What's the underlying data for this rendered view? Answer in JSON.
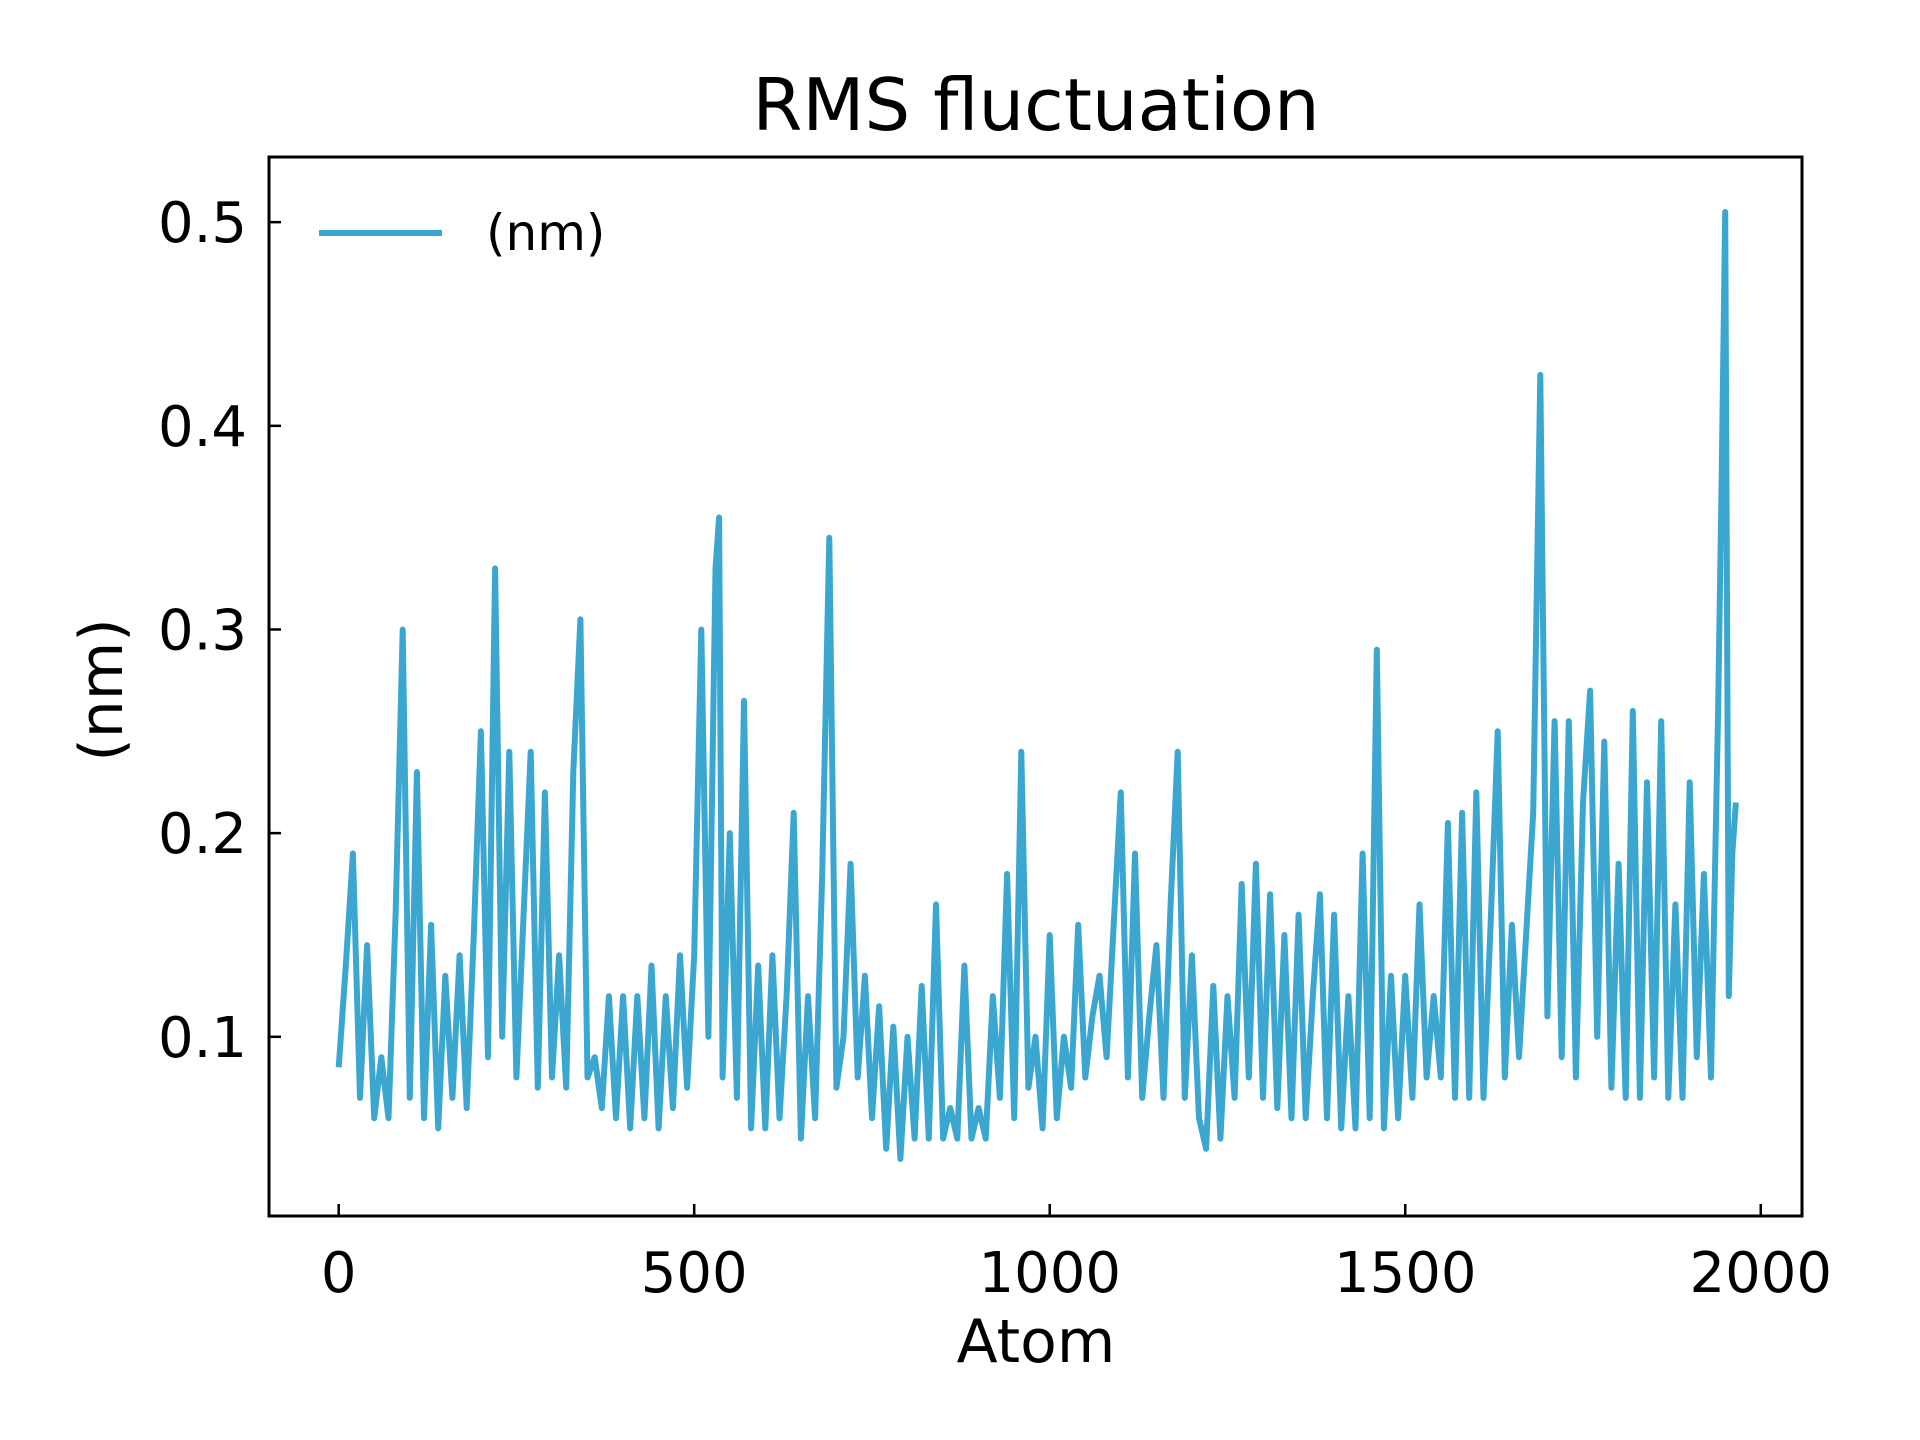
{
  "chart_data": {
    "type": "line",
    "title": "RMS fluctuation",
    "xlabel": "Atom",
    "ylabel": "(nm)",
    "xlim": [
      -98,
      2058
    ],
    "ylim": [
      0.012,
      0.532
    ],
    "xticks": [
      0,
      500,
      1000,
      1500,
      2000
    ],
    "xtick_labels": [
      "0",
      "500",
      "1000",
      "1500",
      "2000"
    ],
    "yticks": [
      0.1,
      0.2,
      0.3,
      0.4,
      0.5
    ],
    "ytick_labels": [
      "0.1",
      "0.2",
      "0.3",
      "0.4",
      "0.5"
    ],
    "grid": false,
    "legend": {
      "placement": "top-left",
      "entries": [
        "(nm)"
      ]
    },
    "series": [
      {
        "name": "(nm)",
        "color": "#3ba7d1",
        "x": [
          0,
          10,
          20,
          30,
          40,
          50,
          60,
          70,
          80,
          90,
          100,
          110,
          120,
          130,
          140,
          150,
          160,
          170,
          180,
          190,
          200,
          210,
          220,
          230,
          240,
          250,
          260,
          270,
          280,
          290,
          300,
          310,
          320,
          330,
          340,
          350,
          360,
          370,
          380,
          390,
          400,
          410,
          420,
          430,
          440,
          450,
          460,
          470,
          480,
          490,
          500,
          510,
          520,
          530,
          535,
          540,
          550,
          560,
          570,
          580,
          590,
          600,
          610,
          620,
          630,
          640,
          650,
          660,
          670,
          680,
          690,
          700,
          710,
          720,
          730,
          740,
          750,
          760,
          770,
          780,
          790,
          800,
          810,
          820,
          830,
          840,
          850,
          860,
          870,
          880,
          890,
          900,
          910,
          920,
          930,
          940,
          950,
          960,
          970,
          980,
          990,
          1000,
          1010,
          1020,
          1030,
          1040,
          1050,
          1060,
          1070,
          1080,
          1090,
          1100,
          1110,
          1120,
          1130,
          1140,
          1150,
          1160,
          1170,
          1180,
          1190,
          1200,
          1210,
          1220,
          1230,
          1240,
          1250,
          1260,
          1270,
          1280,
          1290,
          1300,
          1310,
          1320,
          1330,
          1340,
          1350,
          1360,
          1370,
          1380,
          1390,
          1400,
          1410,
          1420,
          1430,
          1440,
          1450,
          1460,
          1470,
          1480,
          1490,
          1500,
          1510,
          1520,
          1530,
          1540,
          1550,
          1560,
          1570,
          1580,
          1590,
          1600,
          1610,
          1620,
          1630,
          1640,
          1650,
          1660,
          1670,
          1680,
          1690,
          1700,
          1710,
          1720,
          1730,
          1740,
          1750,
          1760,
          1770,
          1780,
          1790,
          1800,
          1810,
          1820,
          1830,
          1840,
          1850,
          1860,
          1870,
          1880,
          1890,
          1900,
          1910,
          1920,
          1930,
          1940,
          1945,
          1950,
          1955,
          1960,
          1965
        ],
        "y": [
          0.085,
          0.135,
          0.19,
          0.07,
          0.145,
          0.06,
          0.09,
          0.06,
          0.16,
          0.3,
          0.07,
          0.23,
          0.06,
          0.155,
          0.055,
          0.13,
          0.07,
          0.14,
          0.065,
          0.15,
          0.25,
          0.09,
          0.33,
          0.1,
          0.24,
          0.08,
          0.16,
          0.24,
          0.075,
          0.22,
          0.08,
          0.14,
          0.075,
          0.23,
          0.305,
          0.08,
          0.09,
          0.065,
          0.12,
          0.06,
          0.12,
          0.055,
          0.12,
          0.06,
          0.135,
          0.055,
          0.12,
          0.065,
          0.14,
          0.075,
          0.14,
          0.3,
          0.1,
          0.33,
          0.355,
          0.08,
          0.2,
          0.07,
          0.265,
          0.055,
          0.135,
          0.055,
          0.14,
          0.06,
          0.12,
          0.21,
          0.05,
          0.12,
          0.06,
          0.18,
          0.345,
          0.075,
          0.1,
          0.185,
          0.08,
          0.13,
          0.06,
          0.115,
          0.045,
          0.105,
          0.04,
          0.1,
          0.05,
          0.125,
          0.05,
          0.165,
          0.05,
          0.065,
          0.05,
          0.135,
          0.05,
          0.065,
          0.05,
          0.12,
          0.07,
          0.18,
          0.06,
          0.24,
          0.075,
          0.1,
          0.055,
          0.15,
          0.06,
          0.1,
          0.075,
          0.155,
          0.08,
          0.11,
          0.13,
          0.09,
          0.155,
          0.22,
          0.08,
          0.19,
          0.07,
          0.11,
          0.145,
          0.07,
          0.165,
          0.24,
          0.07,
          0.14,
          0.06,
          0.045,
          0.125,
          0.05,
          0.12,
          0.07,
          0.175,
          0.08,
          0.185,
          0.07,
          0.17,
          0.065,
          0.15,
          0.06,
          0.16,
          0.06,
          0.12,
          0.17,
          0.06,
          0.16,
          0.055,
          0.12,
          0.055,
          0.19,
          0.06,
          0.29,
          0.055,
          0.13,
          0.06,
          0.13,
          0.07,
          0.165,
          0.08,
          0.12,
          0.08,
          0.205,
          0.07,
          0.21,
          0.07,
          0.22,
          0.07,
          0.155,
          0.25,
          0.08,
          0.155,
          0.09,
          0.15,
          0.21,
          0.425,
          0.11,
          0.255,
          0.09,
          0.255,
          0.08,
          0.215,
          0.27,
          0.1,
          0.245,
          0.075,
          0.185,
          0.07,
          0.26,
          0.07,
          0.225,
          0.08,
          0.255,
          0.07,
          0.165,
          0.07,
          0.225,
          0.09,
          0.18,
          0.08,
          0.26,
          0.375,
          0.505,
          0.12,
          0.19,
          0.215
        ]
      }
    ]
  }
}
